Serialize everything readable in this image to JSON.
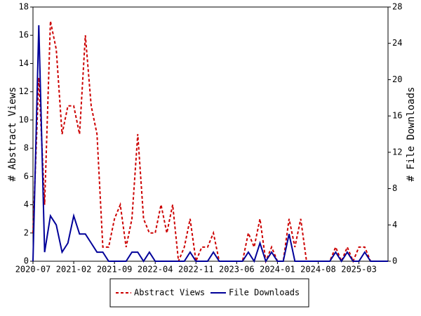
{
  "chart_data": {
    "type": "line",
    "categories": [
      "2020-07",
      null,
      null,
      null,
      null,
      null,
      null,
      "2021-02",
      null,
      null,
      null,
      null,
      null,
      null,
      "2021-09",
      null,
      null,
      null,
      null,
      null,
      null,
      "2022-04",
      null,
      null,
      null,
      null,
      null,
      null,
      "2022-11",
      null,
      null,
      null,
      null,
      null,
      null,
      "2023-06",
      null,
      null,
      null,
      null,
      null,
      null,
      "2024-01",
      null,
      null,
      null,
      null,
      null,
      null,
      "2024-08",
      null,
      null,
      null,
      null,
      null,
      null,
      "2025-03",
      null,
      null,
      null,
      null,
      null
    ],
    "ylabel": "# Abstract Views",
    "y2label": "# File Downloads",
    "ylim": [
      0,
      18
    ],
    "yticks": [
      0,
      2,
      4,
      6,
      8,
      10,
      12,
      14,
      16,
      18
    ],
    "y2lim": [
      0,
      28
    ],
    "y2ticks": [
      0,
      4,
      8,
      12,
      16,
      20,
      24,
      28
    ],
    "legend": "bottom",
    "series": [
      {
        "name": "Abstract Views",
        "color": "#cc0000",
        "style": "dashed",
        "values": [
          2,
          13,
          4,
          17,
          15,
          9,
          11,
          11,
          9,
          16,
          11,
          9,
          1,
          1,
          3,
          4,
          1,
          3,
          9,
          3,
          2,
          2,
          4,
          2,
          4,
          0,
          1,
          3,
          0,
          1,
          1,
          2,
          0,
          0,
          0,
          0,
          0,
          2,
          1,
          3,
          0,
          1,
          0,
          0,
          3,
          1,
          3,
          0,
          0,
          0,
          0,
          0,
          1,
          0,
          1,
          0,
          1,
          1,
          0,
          0,
          0,
          0
        ]
      },
      {
        "name": "File Downloads",
        "color": "#000099",
        "style": "solid",
        "axis": "y2",
        "values": [
          0,
          26,
          1,
          5,
          4,
          1,
          2,
          5,
          3,
          3,
          2,
          1,
          1,
          0,
          0,
          0,
          0,
          1,
          1,
          0,
          1,
          0,
          0,
          0,
          0,
          0,
          0,
          1,
          0,
          0,
          0,
          1,
          0,
          0,
          0,
          0,
          0,
          1,
          0,
          2,
          0,
          1,
          0,
          0,
          3,
          0,
          0,
          0,
          0,
          0,
          0,
          0,
          1,
          0,
          1,
          0,
          0,
          1,
          0,
          0,
          0,
          0
        ]
      }
    ]
  }
}
